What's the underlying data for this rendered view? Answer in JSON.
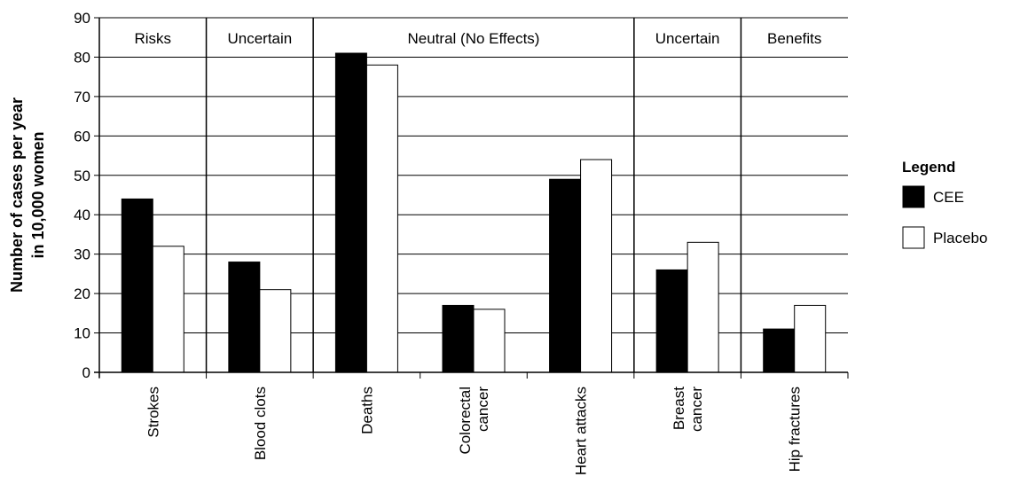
{
  "chart_data": {
    "type": "bar",
    "ylabel": [
      "Number of cases per year",
      "in 10,000 women"
    ],
    "ylim": [
      0,
      90
    ],
    "yticks": [
      0,
      10,
      20,
      30,
      40,
      50,
      60,
      70,
      80,
      90
    ],
    "grid": "horizontal",
    "categories": [
      [
        "Strokes"
      ],
      [
        "Blood clots"
      ],
      [
        "Deaths"
      ],
      [
        "Colorectal",
        "cancer"
      ],
      [
        "Heart attacks"
      ],
      [
        "Breast",
        "cancer"
      ],
      [
        "Hip fractures"
      ]
    ],
    "series": [
      {
        "name": "CEE",
        "color": "#000000",
        "values": [
          44,
          28,
          81,
          17,
          49,
          26,
          11
        ]
      },
      {
        "name": "Placebo",
        "color": "#ffffff",
        "values": [
          32,
          21,
          78,
          16,
          54,
          33,
          17
        ]
      }
    ],
    "groups": [
      {
        "label": "Risks",
        "start": 0,
        "end": 0
      },
      {
        "label": "Uncertain",
        "start": 1,
        "end": 1
      },
      {
        "label": "Neutral (No Effects)",
        "start": 2,
        "end": 4
      },
      {
        "label": "Uncertain",
        "start": 5,
        "end": 5
      },
      {
        "label": "Benefits",
        "start": 6,
        "end": 6
      }
    ],
    "legend": {
      "title": "Legend",
      "position": "right"
    }
  }
}
